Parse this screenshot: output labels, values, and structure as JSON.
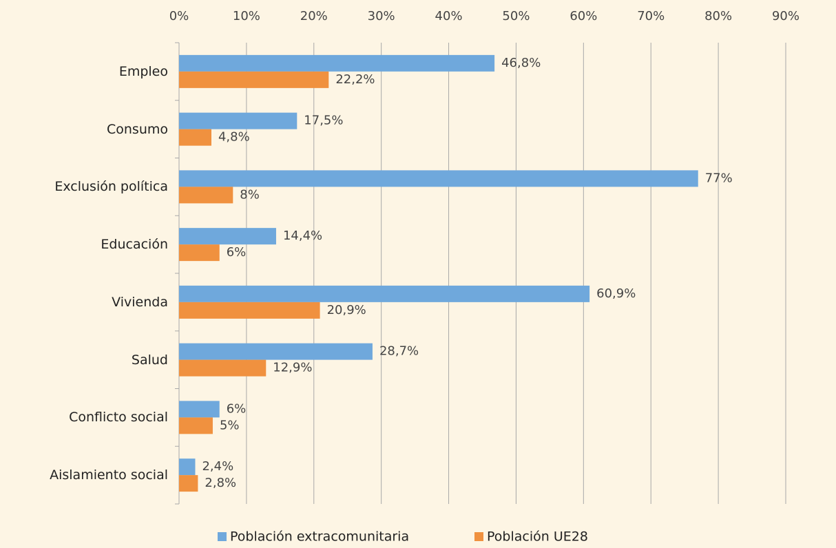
{
  "chart_data": {
    "type": "bar",
    "orientation": "horizontal",
    "categories": [
      "Empleo",
      "Consumo",
      "Exclusión política",
      "Educación",
      "Vivienda",
      "Salud",
      "Conflicto social",
      "Aislamiento social"
    ],
    "series": [
      {
        "name": "Población extracomunitaria",
        "color": "#6fa8dc",
        "values": [
          46.8,
          17.5,
          77,
          14.4,
          60.9,
          28.7,
          6,
          2.4
        ],
        "value_labels": [
          "46,8%",
          "17,5%",
          "77%",
          "14,4%",
          "60,9%",
          "28,7%",
          "6%",
          "2,4%"
        ]
      },
      {
        "name": "Población UE28",
        "color": "#f0913f",
        "values": [
          22.2,
          4.8,
          8,
          6,
          20.9,
          12.9,
          5,
          2.8
        ],
        "value_labels": [
          "22,2%",
          "4,8%",
          "8%",
          "6%",
          "20,9%",
          "12,9%",
          "5%",
          "2,8%"
        ]
      }
    ],
    "xlim": [
      0,
      90
    ],
    "xticks": [
      {
        "value": 0,
        "label": "0%"
      },
      {
        "value": 10,
        "label": "10%"
      },
      {
        "value": 20,
        "label": "20%"
      },
      {
        "value": 30,
        "label": "30%"
      },
      {
        "value": 40,
        "label": "40%"
      },
      {
        "value": 50,
        "label": "50%"
      },
      {
        "value": 60,
        "label": "60%"
      },
      {
        "value": 70,
        "label": "70%"
      },
      {
        "value": 80,
        "label": "80%"
      },
      {
        "value": 90,
        "label": "90%"
      }
    ],
    "grid": true,
    "legend": "bottom"
  }
}
